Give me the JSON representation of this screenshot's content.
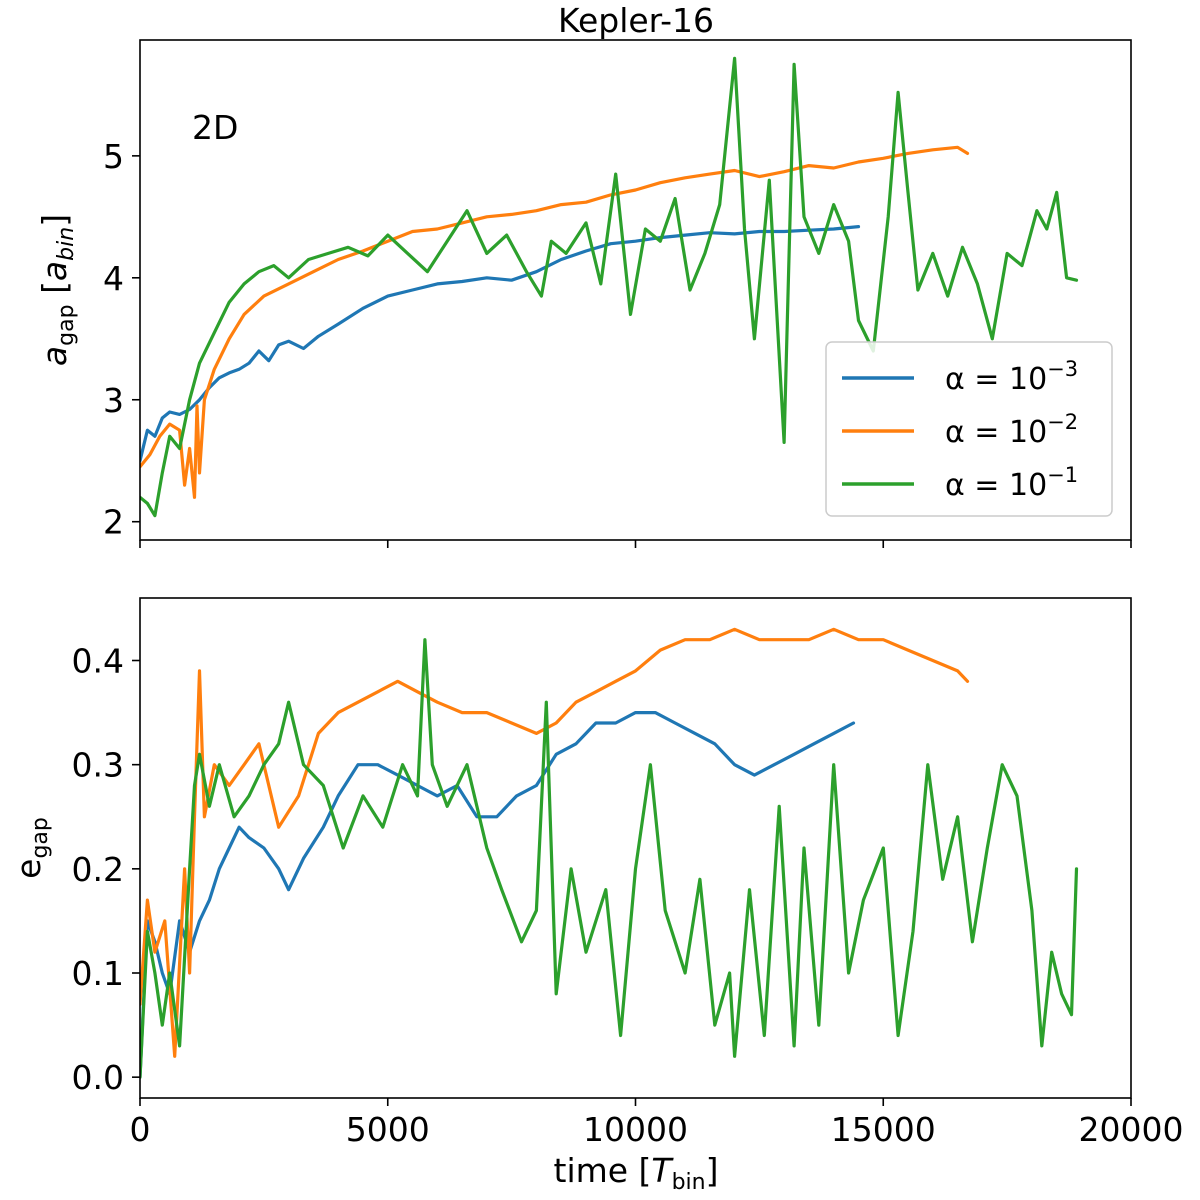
{
  "figure": {
    "title": "Kepler-16"
  },
  "chart_data": [
    {
      "type": "line",
      "panel": "top",
      "annotation": "2D",
      "ylabel": "a_gap [a_bin]",
      "ylabel_main": "a",
      "ylabel_sub": "gap",
      "ylabel_unit_open": " [",
      "ylabel_unit_main": "a",
      "ylabel_unit_sub": "bin",
      "ylabel_unit_close": "]",
      "xlim": [
        0,
        20000
      ],
      "ylim": [
        1.85,
        5.95
      ],
      "yticks": [
        2,
        3,
        4,
        5
      ],
      "xticks": [
        0,
        5000,
        10000,
        15000,
        20000
      ],
      "legend_position": "lower-right",
      "series": [
        {
          "name": "α = 10⁻³",
          "legend_base": "α = 10",
          "legend_exp": "−3",
          "color": "#1f77b4",
          "x": [
            0,
            150,
            300,
            450,
            600,
            800,
            1000,
            1200,
            1400,
            1600,
            1800,
            2000,
            2200,
            2400,
            2600,
            2800,
            3000,
            3300,
            3600,
            4000,
            4500,
            5000,
            5500,
            6000,
            6500,
            7000,
            7500,
            8000,
            8500,
            9000,
            9500,
            10000,
            10500,
            11000,
            11500,
            12000,
            12500,
            13000,
            13500,
            14000,
            14500
          ],
          "y": [
            2.5,
            2.75,
            2.7,
            2.85,
            2.9,
            2.88,
            2.92,
            3.0,
            3.1,
            3.18,
            3.22,
            3.25,
            3.3,
            3.4,
            3.32,
            3.45,
            3.48,
            3.42,
            3.52,
            3.62,
            3.75,
            3.85,
            3.9,
            3.95,
            3.97,
            4.0,
            3.98,
            4.05,
            4.15,
            4.22,
            4.28,
            4.3,
            4.33,
            4.35,
            4.37,
            4.36,
            4.38,
            4.38,
            4.39,
            4.4,
            4.42
          ]
        },
        {
          "name": "α = 10⁻²",
          "legend_base": "α = 10",
          "legend_exp": "−2",
          "color": "#ff7f0e",
          "x": [
            0,
            200,
            400,
            600,
            800,
            900,
            1000,
            1100,
            1150,
            1200,
            1300,
            1500,
            1800,
            2100,
            2500,
            3000,
            3500,
            4000,
            4500,
            5000,
            5500,
            6000,
            6500,
            7000,
            7500,
            8000,
            8500,
            9000,
            9500,
            10000,
            10500,
            11000,
            11500,
            12000,
            12500,
            13000,
            13500,
            14000,
            14500,
            15000,
            15500,
            16000,
            16500,
            16700
          ],
          "y": [
            2.45,
            2.55,
            2.7,
            2.8,
            2.75,
            2.3,
            2.6,
            2.2,
            2.95,
            2.4,
            3.0,
            3.25,
            3.5,
            3.7,
            3.85,
            3.95,
            4.05,
            4.15,
            4.22,
            4.3,
            4.38,
            4.4,
            4.45,
            4.5,
            4.52,
            4.55,
            4.6,
            4.62,
            4.68,
            4.72,
            4.78,
            4.82,
            4.85,
            4.88,
            4.83,
            4.87,
            4.92,
            4.9,
            4.95,
            4.98,
            5.02,
            5.05,
            5.07,
            5.02
          ]
        },
        {
          "name": "α = 10⁻¹",
          "legend_base": "α = 10",
          "legend_exp": "−1",
          "color": "#2ca02c",
          "x": [
            0,
            150,
            300,
            450,
            600,
            800,
            1000,
            1200,
            1500,
            1800,
            2100,
            2400,
            2700,
            3000,
            3400,
            3800,
            4200,
            4600,
            5000,
            5400,
            5800,
            6200,
            6600,
            7000,
            7400,
            7800,
            8100,
            8300,
            8600,
            9000,
            9300,
            9600,
            9900,
            10200,
            10500,
            10800,
            11100,
            11400,
            11700,
            12000,
            12200,
            12400,
            12700,
            13000,
            13100,
            13200,
            13400,
            13700,
            14000,
            14300,
            14500,
            14800,
            15100,
            15300,
            15500,
            15700,
            16000,
            16300,
            16600,
            16900,
            17200,
            17500,
            17800,
            18100,
            18300,
            18500,
            18700,
            18900
          ],
          "y": [
            2.2,
            2.15,
            2.05,
            2.4,
            2.7,
            2.6,
            3.0,
            3.3,
            3.55,
            3.8,
            3.95,
            4.05,
            4.1,
            4.0,
            4.15,
            4.2,
            4.25,
            4.18,
            4.35,
            4.2,
            4.05,
            4.3,
            4.55,
            4.2,
            4.35,
            4.05,
            3.85,
            4.3,
            4.2,
            4.45,
            3.95,
            4.85,
            3.7,
            4.4,
            4.3,
            4.65,
            3.9,
            4.2,
            4.6,
            5.8,
            4.4,
            3.5,
            4.8,
            2.65,
            4.2,
            5.75,
            4.5,
            4.2,
            4.6,
            4.3,
            3.65,
            3.4,
            4.5,
            5.52,
            4.7,
            3.9,
            4.2,
            3.85,
            4.25,
            3.95,
            3.5,
            4.2,
            4.1,
            4.55,
            4.4,
            4.7,
            4.0,
            3.98
          ]
        }
      ]
    },
    {
      "type": "line",
      "panel": "bottom",
      "xlabel": "time [T_bin]",
      "xlabel_main": "time [",
      "xlabel_var": "T",
      "xlabel_sub": "bin",
      "xlabel_close": "]",
      "ylabel": "e_gap",
      "ylabel_main": "e",
      "ylabel_sub": "gap",
      "xlim": [
        0,
        20000
      ],
      "ylim": [
        -0.02,
        0.46
      ],
      "yticks": [
        0.0,
        0.1,
        0.2,
        0.3,
        0.4
      ],
      "ytick_labels": [
        "0.0",
        "0.1",
        "0.2",
        "0.3",
        "0.4"
      ],
      "xticks": [
        0,
        5000,
        10000,
        15000,
        20000
      ],
      "xtick_labels": [
        "0",
        "5000",
        "10000",
        "15000",
        "20000"
      ],
      "series": [
        {
          "name": "α = 10⁻³",
          "color": "#1f77b4",
          "x": [
            0,
            150,
            300,
            450,
            600,
            800,
            1000,
            1200,
            1400,
            1600,
            1800,
            2000,
            2200,
            2500,
            2800,
            3000,
            3300,
            3700,
            4000,
            4400,
            4800,
            5200,
            5600,
            6000,
            6400,
            6800,
            7200,
            7600,
            8000,
            8400,
            8800,
            9200,
            9600,
            10000,
            10400,
            10800,
            11200,
            11600,
            12000,
            12400,
            12800,
            13200,
            13600,
            14000,
            14400
          ],
          "y": [
            0.0,
            0.15,
            0.13,
            0.1,
            0.08,
            0.15,
            0.12,
            0.15,
            0.17,
            0.2,
            0.22,
            0.24,
            0.23,
            0.22,
            0.2,
            0.18,
            0.21,
            0.24,
            0.27,
            0.3,
            0.3,
            0.29,
            0.28,
            0.27,
            0.28,
            0.25,
            0.25,
            0.27,
            0.28,
            0.31,
            0.32,
            0.34,
            0.34,
            0.35,
            0.35,
            0.34,
            0.33,
            0.32,
            0.3,
            0.29,
            0.3,
            0.31,
            0.32,
            0.33,
            0.34
          ]
        },
        {
          "name": "α = 10⁻²",
          "color": "#ff7f0e",
          "x": [
            0,
            150,
            300,
            500,
            700,
            900,
            1000,
            1100,
            1200,
            1300,
            1500,
            1800,
            2100,
            2400,
            2800,
            3200,
            3600,
            4000,
            4400,
            4800,
            5200,
            5600,
            6000,
            6500,
            7000,
            7500,
            8000,
            8400,
            8800,
            9200,
            9600,
            10000,
            10500,
            11000,
            11500,
            12000,
            12500,
            13000,
            13500,
            14000,
            14500,
            15000,
            15500,
            16000,
            16500,
            16700
          ],
          "y": [
            0.07,
            0.17,
            0.12,
            0.15,
            0.02,
            0.2,
            0.1,
            0.25,
            0.39,
            0.25,
            0.3,
            0.28,
            0.3,
            0.32,
            0.24,
            0.27,
            0.33,
            0.35,
            0.36,
            0.37,
            0.38,
            0.37,
            0.36,
            0.35,
            0.35,
            0.34,
            0.33,
            0.34,
            0.36,
            0.37,
            0.38,
            0.39,
            0.41,
            0.42,
            0.42,
            0.43,
            0.42,
            0.42,
            0.42,
            0.43,
            0.42,
            0.42,
            0.41,
            0.4,
            0.39,
            0.38
          ]
        },
        {
          "name": "α = 10⁻¹",
          "color": "#2ca02c",
          "x": [
            0,
            150,
            300,
            450,
            600,
            800,
            1000,
            1100,
            1200,
            1400,
            1600,
            1900,
            2200,
            2500,
            2800,
            3000,
            3300,
            3700,
            4100,
            4500,
            4900,
            5300,
            5600,
            5750,
            5900,
            6200,
            6600,
            7000,
            7300,
            7700,
            8000,
            8200,
            8400,
            8700,
            9000,
            9400,
            9700,
            10000,
            10300,
            10600,
            11000,
            11300,
            11600,
            11900,
            12000,
            12300,
            12600,
            12900,
            13200,
            13400,
            13700,
            14000,
            14300,
            14600,
            15000,
            15300,
            15600,
            15900,
            16200,
            16500,
            16800,
            17100,
            17400,
            17700,
            18000,
            18200,
            18400,
            18600,
            18800,
            18900
          ],
          "y": [
            0.0,
            0.14,
            0.1,
            0.05,
            0.1,
            0.03,
            0.2,
            0.28,
            0.31,
            0.26,
            0.3,
            0.25,
            0.27,
            0.3,
            0.32,
            0.36,
            0.3,
            0.28,
            0.22,
            0.27,
            0.24,
            0.3,
            0.27,
            0.42,
            0.3,
            0.26,
            0.3,
            0.22,
            0.18,
            0.13,
            0.16,
            0.36,
            0.08,
            0.2,
            0.12,
            0.18,
            0.04,
            0.2,
            0.3,
            0.16,
            0.1,
            0.19,
            0.05,
            0.1,
            0.02,
            0.18,
            0.04,
            0.26,
            0.03,
            0.22,
            0.05,
            0.3,
            0.1,
            0.17,
            0.22,
            0.04,
            0.14,
            0.3,
            0.19,
            0.25,
            0.13,
            0.22,
            0.3,
            0.27,
            0.16,
            0.03,
            0.12,
            0.08,
            0.06,
            0.2
          ]
        }
      ]
    }
  ]
}
